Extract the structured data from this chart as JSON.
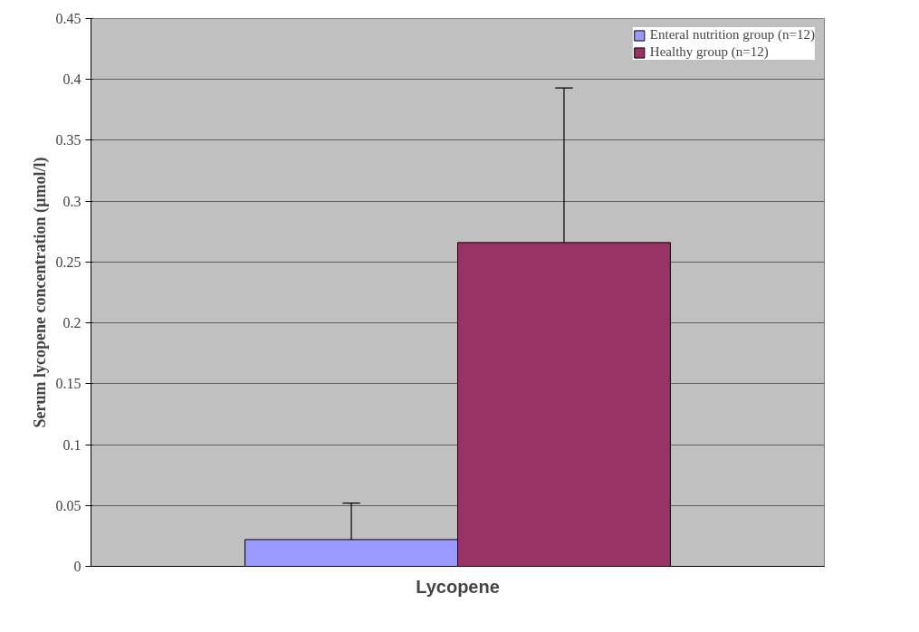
{
  "chart_data": {
    "type": "bar",
    "xlabel": "Lycopene",
    "ylabel": "Serum lycopene concentration (µmol/l)",
    "categories": [
      null
    ],
    "series": [
      {
        "name": "Enteral nutrition group (n=12)",
        "color": "#9999ff",
        "values": [
          0.022
        ],
        "errors": [
          [
            0.022,
            0.052
          ]
        ]
      },
      {
        "name": "Healthy group (n=12)",
        "color": "#993366",
        "values": [
          0.266
        ],
        "errors": [
          [
            0.266,
            0.393
          ]
        ]
      }
    ],
    "ylim": [
      0,
      0.45
    ],
    "yticks": [
      0,
      0.05,
      0.1,
      0.15,
      0.2,
      0.25,
      0.3,
      0.35,
      0.4,
      0.45
    ],
    "grid": "y",
    "legend": "top right",
    "tick_labels": "y"
  }
}
